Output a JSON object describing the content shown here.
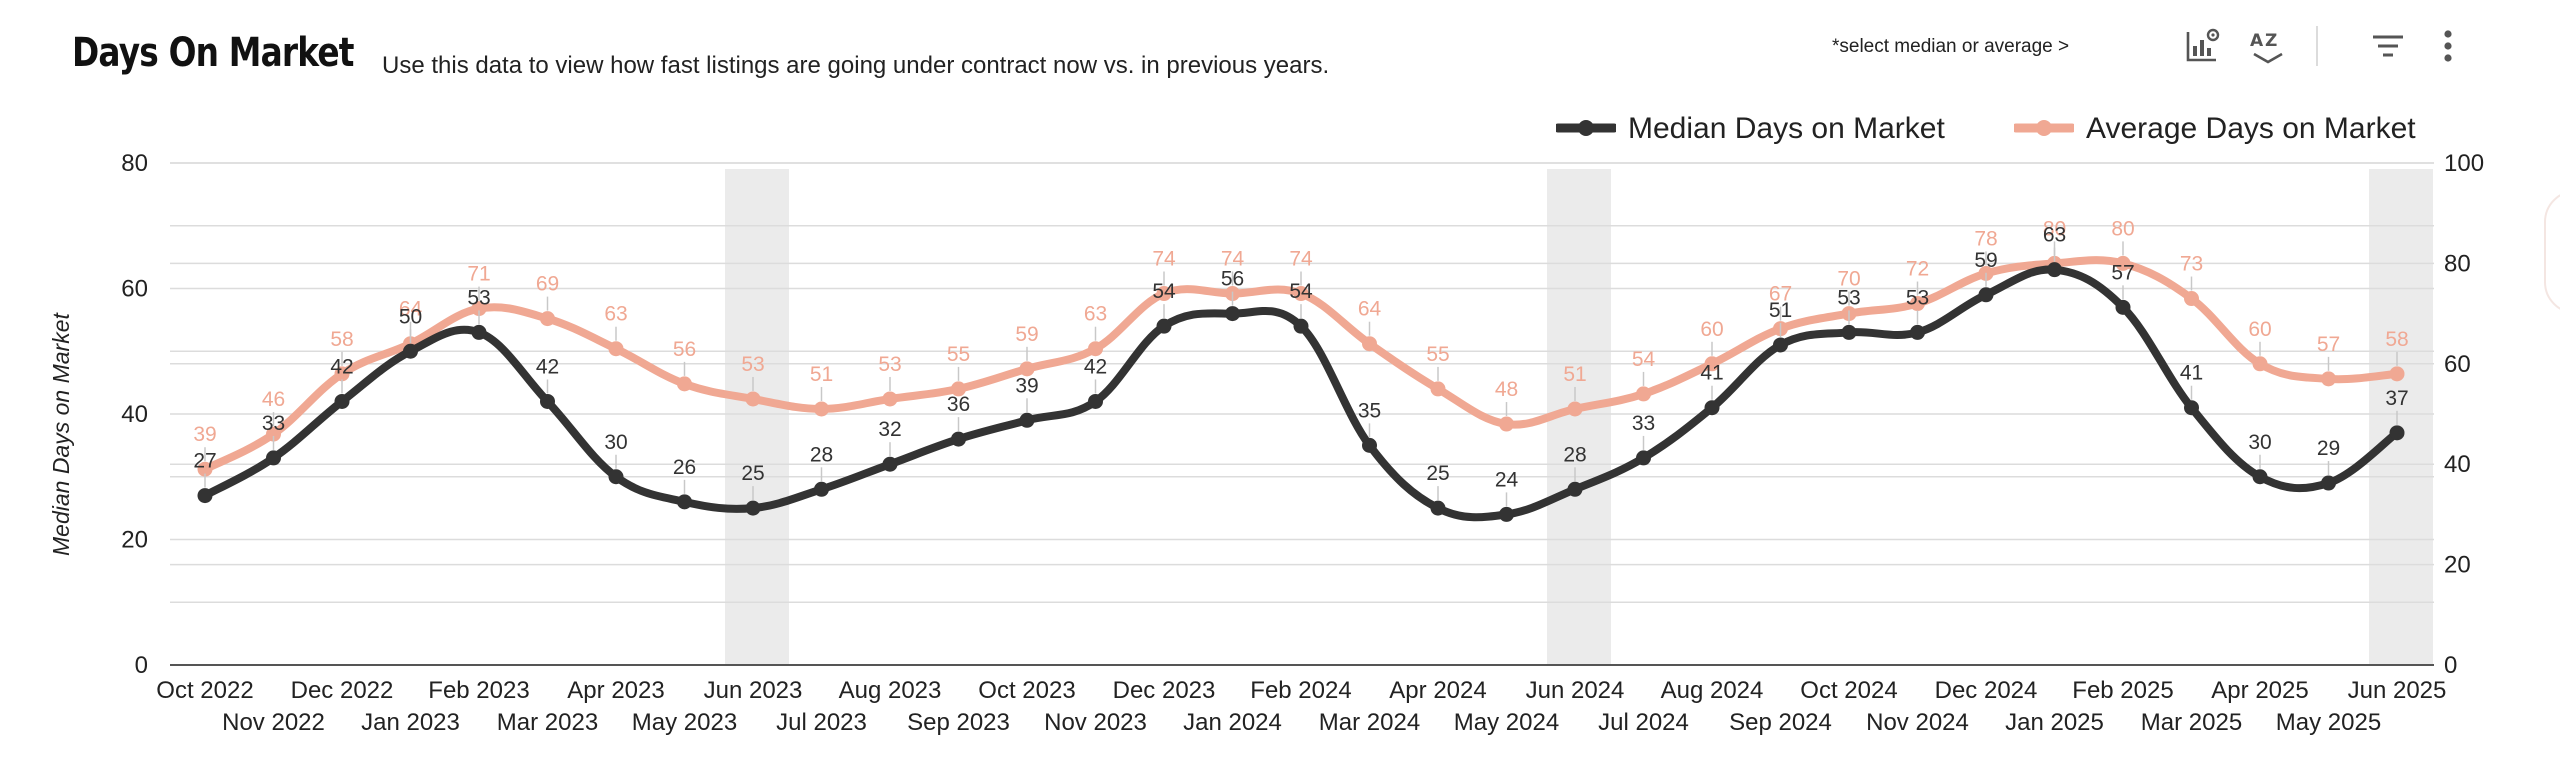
{
  "header": {
    "title": "Days On Market",
    "subtitle": "Use this data to view how fast listings are going under contract now vs. in previous years.",
    "hint": "*select median or average >"
  },
  "toolbar": {
    "icons": [
      "chart-settings-icon",
      "sort-az-icon",
      "filter-icon",
      "more-vert-icon"
    ]
  },
  "colors": {
    "median": "#333333",
    "average": "#f0a893",
    "grid": "#dcdcdc",
    "shade": "#ebebeb"
  },
  "chart_data": {
    "type": "line",
    "title": "Days On Market",
    "ylabel": "Median Days on Market",
    "ylim": [
      0,
      80
    ],
    "y2lim": [
      0,
      100
    ],
    "yticks": [
      0,
      20,
      40,
      60,
      80
    ],
    "y2ticks": [
      0,
      20,
      40,
      60,
      80,
      100
    ],
    "legend_position": "top-right",
    "shaded_months": [
      "Jun 2023",
      "Jun 2024",
      "Jun 2025"
    ],
    "categories": [
      "Oct 2022",
      "Nov 2022",
      "Dec 2022",
      "Jan 2023",
      "Feb 2023",
      "Mar 2023",
      "Apr 2023",
      "May 2023",
      "Jun 2023",
      "Jul 2023",
      "Aug 2023",
      "Sep 2023",
      "Oct 2023",
      "Nov 2023",
      "Dec 2023",
      "Jan 2024",
      "Feb 2024",
      "Mar 2024",
      "Apr 2024",
      "May 2024",
      "Jun 2024",
      "Jul 2024",
      "Aug 2024",
      "Sep 2024",
      "Oct 2024",
      "Nov 2024",
      "Dec 2024",
      "Jan 2025",
      "Feb 2025",
      "Mar 2025",
      "Apr 2025",
      "May 2025",
      "Jun 2025"
    ],
    "series": [
      {
        "name": "Median Days on Market",
        "axis": "left",
        "values": [
          27,
          33,
          42,
          50,
          53,
          42,
          30,
          26,
          25,
          28,
          32,
          36,
          39,
          42,
          54,
          56,
          54,
          35,
          25,
          24,
          28,
          33,
          41,
          51,
          53,
          53,
          59,
          63,
          57,
          41,
          30,
          29,
          37
        ]
      },
      {
        "name": "Average Days on Market",
        "axis": "right",
        "values": [
          39,
          46,
          58,
          64,
          71,
          69,
          63,
          56,
          53,
          51,
          53,
          55,
          59,
          63,
          74,
          74,
          74,
          64,
          55,
          48,
          51,
          54,
          60,
          67,
          70,
          72,
          78,
          80,
          80,
          73,
          60,
          57,
          58
        ]
      }
    ]
  }
}
